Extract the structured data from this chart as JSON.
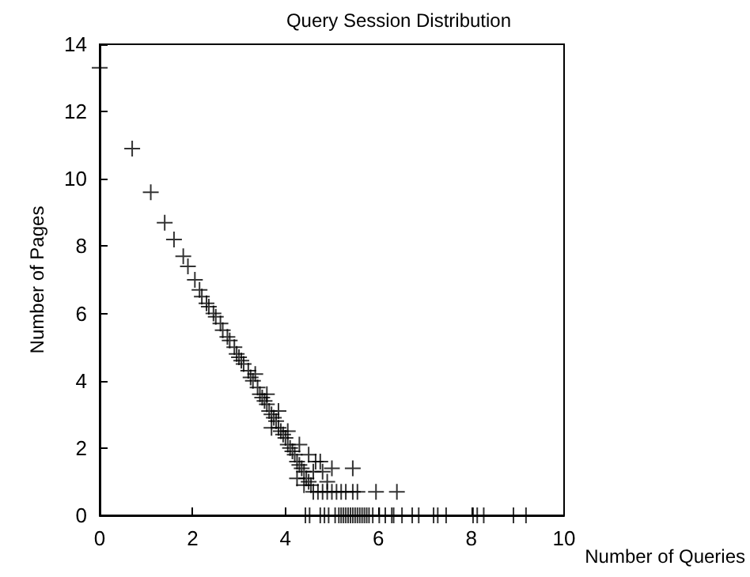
{
  "chart_data": {
    "type": "scatter",
    "title": "Query Session Distribution",
    "xlabel": "Number of Queries",
    "ylabel": "Number of Pages",
    "marker": "cross",
    "color": "#000000",
    "x": [
      0,
      0.7,
      1.1,
      1.4,
      1.6,
      1.8,
      1.9,
      2.05,
      2.15,
      2.2,
      2.3,
      2.35,
      2.45,
      2.5,
      2.6,
      2.65,
      2.75,
      2.8,
      2.9,
      2.95,
      3.0,
      3.05,
      3.1,
      3.2,
      3.25,
      3.3,
      3.4,
      3.45,
      3.5,
      3.55,
      3.6,
      3.65,
      3.7,
      3.75,
      3.8,
      3.85,
      3.9,
      3.95,
      4.0,
      4.05,
      4.1,
      4.15,
      4.2,
      4.25,
      4.3,
      4.35,
      4.4,
      4.45,
      4.5,
      4.55,
      4.6,
      4.7,
      4.8,
      4.9,
      5.0,
      5.1,
      5.2,
      5.3,
      5.45,
      5.55,
      5.95,
      6.4,
      3.35,
      3.6,
      3.85,
      4.05,
      3.7,
      4.3,
      4.5,
      4.65,
      4.75,
      4.6,
      4.25,
      4.8,
      5.0,
      5.45,
      4.9,
      4.4,
      4.43,
      4.52,
      4.75,
      4.84,
      4.93,
      5.07,
      5.15,
      5.2,
      5.25,
      5.3,
      5.35,
      5.4,
      5.45,
      5.5,
      5.55,
      5.6,
      5.65,
      5.7,
      5.75,
      5.8,
      5.88,
      6.02,
      6.15,
      6.29,
      6.33,
      6.51,
      6.73,
      6.87,
      7.19,
      7.28,
      7.46,
      8.04,
      8.13,
      8.27,
      8.91,
      9.18
    ],
    "values": [
      13.3,
      10.9,
      9.6,
      8.7,
      8.2,
      7.7,
      7.4,
      7.0,
      6.7,
      6.5,
      6.3,
      6.2,
      6.0,
      5.9,
      5.7,
      5.5,
      5.3,
      5.2,
      5.0,
      4.8,
      4.7,
      4.6,
      4.5,
      4.3,
      4.1,
      4.0,
      3.8,
      3.6,
      3.5,
      3.4,
      3.3,
      3.1,
      3.0,
      2.9,
      2.8,
      2.6,
      2.5,
      2.4,
      2.3,
      2.1,
      2.0,
      1.9,
      1.8,
      1.6,
      1.5,
      1.4,
      1.3,
      1.1,
      1.0,
      0.9,
      0.7,
      0.7,
      0.7,
      0.7,
      0.7,
      0.7,
      0.7,
      0.7,
      0.7,
      0.7,
      0.7,
      0.7,
      4.2,
      3.6,
      3.1,
      2.5,
      2.6,
      2.1,
      1.8,
      1.6,
      1.6,
      1.3,
      1.1,
      1.3,
      1.4,
      1.4,
      1.0,
      0.9,
      0,
      0,
      0,
      0,
      0,
      0,
      0,
      0,
      0,
      0,
      0,
      0,
      0,
      0,
      0,
      0,
      0,
      0,
      0,
      0,
      0,
      0,
      0,
      0,
      0,
      0,
      0,
      0,
      0,
      0,
      0,
      0,
      0,
      0,
      0,
      0
    ],
    "xlim": [
      0,
      10
    ],
    "ylim": [
      0,
      14
    ],
    "xticks": [
      0,
      2,
      4,
      6,
      8,
      10
    ],
    "yticks": [
      0,
      2,
      4,
      6,
      8,
      10,
      12,
      14
    ]
  }
}
